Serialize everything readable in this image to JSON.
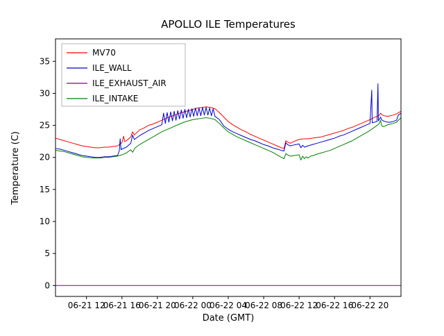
{
  "figure": {
    "background": "#ffffff",
    "frame_color": "#000000"
  },
  "chart_data": {
    "type": "line",
    "title": "APOLLO ILE Temperatures",
    "xlabel": "Date (GMT)",
    "ylabel": "Temperature (C)",
    "xlim": [
      8.5,
      47.5
    ],
    "ylim": [
      -1.7,
      38.5
    ],
    "grid": false,
    "legend_position": "upper left",
    "xticks": [
      {
        "v": 12,
        "label": "06-21 12"
      },
      {
        "v": 16,
        "label": "06-21 16"
      },
      {
        "v": 20,
        "label": "06-21 20"
      },
      {
        "v": 24,
        "label": "06-22 00"
      },
      {
        "v": 28,
        "label": "06-22 04"
      },
      {
        "v": 32,
        "label": "06-22 08"
      },
      {
        "v": 36,
        "label": "06-22 12"
      },
      {
        "v": 40,
        "label": "06-22 16"
      },
      {
        "v": 44,
        "label": "06-22 20"
      }
    ],
    "yticks": [
      {
        "v": 0,
        "label": "0"
      },
      {
        "v": 5,
        "label": "5"
      },
      {
        "v": 10,
        "label": "10"
      },
      {
        "v": 15,
        "label": "15"
      },
      {
        "v": 20,
        "label": "20"
      },
      {
        "v": 25,
        "label": "25"
      },
      {
        "v": 30,
        "label": "30"
      },
      {
        "v": 35,
        "label": "35"
      }
    ],
    "series": [
      {
        "name": "MV70",
        "color": "#ff0000",
        "points": [
          [
            8.5,
            23.0
          ],
          [
            9,
            22.8
          ],
          [
            9.5,
            22.6
          ],
          [
            10,
            22.4
          ],
          [
            10.5,
            22.2
          ],
          [
            11,
            22.0
          ],
          [
            11.5,
            21.8
          ],
          [
            12,
            21.7
          ],
          [
            12.5,
            21.6
          ],
          [
            13,
            21.5
          ],
          [
            13.5,
            21.5
          ],
          [
            14,
            21.6
          ],
          [
            14.5,
            21.6
          ],
          [
            15,
            21.7
          ],
          [
            15.5,
            21.8
          ],
          [
            15.7,
            22.0
          ],
          [
            16,
            22.3
          ],
          [
            16.2,
            23.3
          ],
          [
            16.3,
            22.5
          ],
          [
            16.5,
            22.6
          ],
          [
            17,
            23.2
          ],
          [
            17.2,
            24.0
          ],
          [
            17.4,
            23.5
          ],
          [
            18,
            24.3
          ],
          [
            18.5,
            24.6
          ],
          [
            19,
            25.0
          ],
          [
            19.5,
            25.2
          ],
          [
            20,
            25.5
          ],
          [
            20.5,
            25.8
          ],
          [
            21,
            26.1
          ],
          [
            21.5,
            26.4
          ],
          [
            22,
            26.6
          ],
          [
            22.5,
            26.9
          ],
          [
            23,
            27.1
          ],
          [
            23.5,
            27.3
          ],
          [
            24,
            27.5
          ],
          [
            24.5,
            27.7
          ],
          [
            25,
            27.8
          ],
          [
            25.5,
            27.9
          ],
          [
            26,
            27.8
          ],
          [
            26.5,
            27.6
          ],
          [
            27,
            27.0
          ],
          [
            27.5,
            26.3
          ],
          [
            28,
            25.6
          ],
          [
            28.5,
            25.1
          ],
          [
            29,
            24.7
          ],
          [
            29.5,
            24.3
          ],
          [
            30,
            24.0
          ],
          [
            30.5,
            23.6
          ],
          [
            31,
            23.3
          ],
          [
            31.5,
            23.0
          ],
          [
            32,
            22.7
          ],
          [
            32.5,
            22.4
          ],
          [
            33,
            22.1
          ],
          [
            33.5,
            21.8
          ],
          [
            34,
            21.5
          ],
          [
            34.3,
            21.4
          ],
          [
            34.5,
            22.6
          ],
          [
            34.7,
            22.4
          ],
          [
            35,
            22.2
          ],
          [
            35.3,
            22.4
          ],
          [
            35.6,
            22.6
          ],
          [
            36,
            22.8
          ],
          [
            36.5,
            22.9
          ],
          [
            37,
            22.9
          ],
          [
            37.5,
            23.0
          ],
          [
            38,
            23.1
          ],
          [
            38.5,
            23.2
          ],
          [
            39,
            23.4
          ],
          [
            39.5,
            23.6
          ],
          [
            40,
            23.8
          ],
          [
            40.5,
            24.0
          ],
          [
            41,
            24.2
          ],
          [
            41.5,
            24.5
          ],
          [
            42,
            24.7
          ],
          [
            42.5,
            25.0
          ],
          [
            43,
            25.3
          ],
          [
            43.5,
            25.6
          ],
          [
            44,
            25.9
          ],
          [
            44.3,
            26.1
          ],
          [
            44.6,
            26.3
          ],
          [
            45,
            26.5
          ],
          [
            45.2,
            26.9
          ],
          [
            45.4,
            26.6
          ],
          [
            45.6,
            26.5
          ],
          [
            46,
            26.4
          ],
          [
            46.3,
            26.5
          ],
          [
            46.6,
            26.6
          ],
          [
            47,
            26.8
          ],
          [
            47.5,
            27.2
          ]
        ]
      },
      {
        "name": "ILE_WALL",
        "color": "#0000cc",
        "points": [
          [
            8.5,
            21.4
          ],
          [
            9,
            21.3
          ],
          [
            9.5,
            21.1
          ],
          [
            10,
            20.9
          ],
          [
            10.5,
            20.7
          ],
          [
            11,
            20.5
          ],
          [
            11.5,
            20.3
          ],
          [
            12,
            20.2
          ],
          [
            12.5,
            20.1
          ],
          [
            13,
            20.0
          ],
          [
            13.5,
            20.0
          ],
          [
            14,
            20.1
          ],
          [
            14.5,
            20.1
          ],
          [
            15,
            20.2
          ],
          [
            15.5,
            20.3
          ],
          [
            15.7,
            21.0
          ],
          [
            15.8,
            22.9
          ],
          [
            15.9,
            21.2
          ],
          [
            16,
            21.3
          ],
          [
            16.5,
            21.6
          ],
          [
            17,
            22.2
          ],
          [
            17.2,
            23.5
          ],
          [
            17.4,
            22.8
          ],
          [
            18,
            23.4
          ],
          [
            18.5,
            23.8
          ],
          [
            19,
            24.2
          ],
          [
            19.5,
            24.5
          ],
          [
            20,
            24.8
          ],
          [
            20.5,
            25.1
          ],
          [
            20.7,
            26.9
          ],
          [
            20.9,
            25.3
          ],
          [
            21.1,
            27.0
          ],
          [
            21.3,
            25.5
          ],
          [
            21.5,
            27.1
          ],
          [
            21.7,
            25.7
          ],
          [
            21.9,
            27.2
          ],
          [
            22.1,
            25.8
          ],
          [
            22.3,
            27.3
          ],
          [
            22.5,
            26.0
          ],
          [
            22.7,
            27.4
          ],
          [
            22.9,
            26.1
          ],
          [
            23.1,
            27.5
          ],
          [
            23.3,
            26.2
          ],
          [
            23.5,
            27.5
          ],
          [
            23.7,
            26.3
          ],
          [
            23.9,
            27.6
          ],
          [
            24.1,
            26.4
          ],
          [
            24.3,
            27.7
          ],
          [
            24.5,
            26.5
          ],
          [
            24.7,
            27.7
          ],
          [
            24.9,
            26.5
          ],
          [
            25.1,
            27.8
          ],
          [
            25.3,
            26.6
          ],
          [
            25.5,
            27.8
          ],
          [
            25.7,
            26.6
          ],
          [
            25.9,
            27.7
          ],
          [
            26.1,
            26.5
          ],
          [
            26.3,
            27.6
          ],
          [
            26.5,
            26.4
          ],
          [
            27,
            25.9
          ],
          [
            27.3,
            25.3
          ],
          [
            27.5,
            24.9
          ],
          [
            28,
            24.4
          ],
          [
            28.5,
            24.0
          ],
          [
            29,
            23.7
          ],
          [
            29.5,
            23.4
          ],
          [
            30,
            23.1
          ],
          [
            30.5,
            22.8
          ],
          [
            31,
            22.6
          ],
          [
            31.5,
            22.3
          ],
          [
            32,
            22.0
          ],
          [
            32.5,
            21.8
          ],
          [
            33,
            21.5
          ],
          [
            33.5,
            21.3
          ],
          [
            34,
            21.1
          ],
          [
            34.3,
            21.0
          ],
          [
            34.5,
            22.3
          ],
          [
            34.7,
            22.0
          ],
          [
            35,
            21.8
          ],
          [
            35.3,
            21.9
          ],
          [
            35.6,
            22.0
          ],
          [
            36,
            22.1
          ],
          [
            36.2,
            21.5
          ],
          [
            36.4,
            21.9
          ],
          [
            36.6,
            21.6
          ],
          [
            37,
            21.8
          ],
          [
            37.5,
            22.0
          ],
          [
            38,
            22.2
          ],
          [
            38.5,
            22.4
          ],
          [
            39,
            22.6
          ],
          [
            39.5,
            22.8
          ],
          [
            40,
            23.0
          ],
          [
            40.5,
            23.3
          ],
          [
            41,
            23.5
          ],
          [
            41.5,
            23.8
          ],
          [
            42,
            24.1
          ],
          [
            42.5,
            24.4
          ],
          [
            43,
            24.7
          ],
          [
            43.5,
            25.0
          ],
          [
            44,
            25.3
          ],
          [
            44.2,
            30.5
          ],
          [
            44.25,
            25.4
          ],
          [
            44.5,
            25.5
          ],
          [
            44.8,
            25.6
          ],
          [
            44.9,
            31.5
          ],
          [
            44.95,
            25.7
          ],
          [
            45.2,
            26.3
          ],
          [
            45.3,
            25.9
          ],
          [
            45.5,
            25.7
          ],
          [
            45.7,
            25.6
          ],
          [
            46,
            25.5
          ],
          [
            46.3,
            25.5
          ],
          [
            46.6,
            25.6
          ],
          [
            47,
            25.8
          ],
          [
            47.2,
            26.6
          ],
          [
            47.5,
            26.9
          ]
        ]
      },
      {
        "name": "ILE_EXHAUST_AIR",
        "color": "#800080",
        "points": [
          [
            8.5,
            0
          ],
          [
            47.5,
            0
          ]
        ]
      },
      {
        "name": "ILE_INTAKE",
        "color": "#008000",
        "points": [
          [
            8.5,
            21.1
          ],
          [
            9,
            21.0
          ],
          [
            9.5,
            20.9
          ],
          [
            10,
            20.7
          ],
          [
            10.5,
            20.5
          ],
          [
            11,
            20.3
          ],
          [
            11.5,
            20.1
          ],
          [
            12,
            20.0
          ],
          [
            12.5,
            19.95
          ],
          [
            13,
            19.9
          ],
          [
            13.5,
            19.9
          ],
          [
            14,
            20.0
          ],
          [
            14.5,
            20.0
          ],
          [
            15,
            20.1
          ],
          [
            15.5,
            20.2
          ],
          [
            16,
            20.4
          ],
          [
            16.5,
            20.7
          ],
          [
            17,
            21.2
          ],
          [
            17.2,
            20.8
          ],
          [
            17.5,
            21.5
          ],
          [
            18,
            22.0
          ],
          [
            18.5,
            22.4
          ],
          [
            19,
            22.8
          ],
          [
            19.5,
            23.2
          ],
          [
            20,
            23.6
          ],
          [
            20.5,
            24.0
          ],
          [
            21,
            24.3
          ],
          [
            21.5,
            24.6
          ],
          [
            22,
            24.9
          ],
          [
            22.5,
            25.2
          ],
          [
            23,
            25.5
          ],
          [
            23.5,
            25.7
          ],
          [
            24,
            25.9
          ],
          [
            24.5,
            26.0
          ],
          [
            25,
            26.1
          ],
          [
            25.5,
            26.2
          ],
          [
            26,
            26.1
          ],
          [
            26.5,
            25.9
          ],
          [
            27,
            25.3
          ],
          [
            27.5,
            24.6
          ],
          [
            28,
            24.0
          ],
          [
            28.5,
            23.6
          ],
          [
            29,
            23.2
          ],
          [
            29.5,
            22.9
          ],
          [
            30,
            22.6
          ],
          [
            30.5,
            22.3
          ],
          [
            31,
            22.0
          ],
          [
            31.5,
            21.7
          ],
          [
            32,
            21.4
          ],
          [
            32.5,
            21.1
          ],
          [
            33,
            20.8
          ],
          [
            33.5,
            20.4
          ],
          [
            34,
            20.0
          ],
          [
            34.3,
            19.8
          ],
          [
            34.5,
            20.6
          ],
          [
            34.7,
            20.4
          ],
          [
            35,
            20.2
          ],
          [
            35.5,
            20.3
          ],
          [
            36,
            20.4
          ],
          [
            36.2,
            19.6
          ],
          [
            36.4,
            20.2
          ],
          [
            36.6,
            19.8
          ],
          [
            36.8,
            20.1
          ],
          [
            37,
            19.9
          ],
          [
            37.3,
            20.2
          ],
          [
            37.6,
            20.3
          ],
          [
            38,
            20.5
          ],
          [
            38.5,
            20.7
          ],
          [
            39,
            20.9
          ],
          [
            39.5,
            21.1
          ],
          [
            40,
            21.4
          ],
          [
            40.5,
            21.7
          ],
          [
            41,
            22.0
          ],
          [
            41.5,
            22.3
          ],
          [
            42,
            22.6
          ],
          [
            42.5,
            23.0
          ],
          [
            43,
            23.4
          ],
          [
            43.5,
            23.8
          ],
          [
            44,
            24.2
          ],
          [
            44.3,
            24.5
          ],
          [
            44.6,
            24.8
          ],
          [
            45,
            25.2
          ],
          [
            45.2,
            25.8
          ],
          [
            45.3,
            25.0
          ],
          [
            45.5,
            24.8
          ],
          [
            45.7,
            24.9
          ],
          [
            46,
            25.1
          ],
          [
            46.3,
            25.2
          ],
          [
            46.6,
            25.3
          ],
          [
            47,
            25.5
          ],
          [
            47.5,
            26.2
          ]
        ]
      }
    ]
  }
}
